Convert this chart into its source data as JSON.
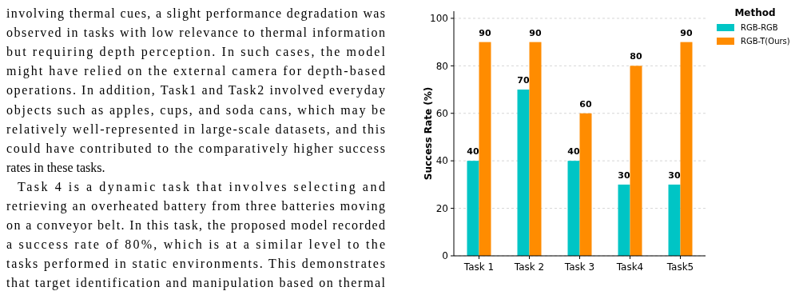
{
  "chart_data": {
    "type": "bar",
    "ylabel": "Success Rate (%)",
    "legend_title": "Method",
    "categories": [
      "Task 1",
      "Task 2",
      "Task 3",
      "Task4",
      "Task5"
    ],
    "series": [
      {
        "name": "RGB-RGB",
        "color": "#00c5c5",
        "values": [
          40,
          70,
          40,
          30,
          30
        ]
      },
      {
        "name": "RGB-T(Ours)",
        "color": "#ff8c00",
        "values": [
          90,
          90,
          60,
          80,
          90
        ]
      }
    ],
    "ylim": [
      0,
      103
    ],
    "yticks": [
      0,
      20,
      40,
      60,
      80,
      100
    ],
    "grid": "y",
    "legend": "top right",
    "data_labels": true,
    "annotations": [
      "involving thermal cues, a slight performance degradation was",
      "observed in tasks with low relevance to thermal information",
      "but requiring depth perception. In such cases, the model",
      "might have relied on the external camera for depth-based",
      "operations. In addition, Task1 and Task2 involved everyday",
      "objects such as apples, cups, and soda cans, which may be",
      "relatively well-represented in large-scale datasets, and this",
      "could have contributed to the comparatively higher success",
      "rates in these tasks.",
      "Task 4 is a dynamic task that involves selecting and",
      "retrieving an overheated battery from three batteries moving",
      "on a conveyor belt. In this task, the proposed model recorded",
      "a success rate of 80%, which is at a similar level to the",
      "tasks performed in static environments. This demonstrates",
      "that target identification and manipulation based on thermal"
    ]
  }
}
